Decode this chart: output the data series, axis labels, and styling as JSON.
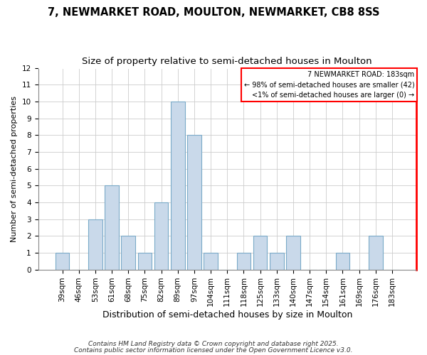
{
  "title": "7, NEWMARKET ROAD, MOULTON, NEWMARKET, CB8 8SS",
  "subtitle": "Size of property relative to semi-detached houses in Moulton",
  "xlabel": "Distribution of semi-detached houses by size in Moulton",
  "ylabel": "Number of semi-detached properties",
  "bar_labels": [
    "39sqm",
    "46sqm",
    "53sqm",
    "61sqm",
    "68sqm",
    "75sqm",
    "82sqm",
    "89sqm",
    "97sqm",
    "104sqm",
    "111sqm",
    "118sqm",
    "125sqm",
    "133sqm",
    "140sqm",
    "147sqm",
    "154sqm",
    "161sqm",
    "169sqm",
    "176sqm",
    "183sqm"
  ],
  "bar_values": [
    1,
    0,
    3,
    5,
    2,
    1,
    4,
    10,
    8,
    1,
    0,
    1,
    2,
    1,
    2,
    0,
    0,
    1,
    0,
    2,
    0
  ],
  "bar_color": "#c9d9ea",
  "bar_edgecolor": "#7aaac8",
  "ylim": [
    0,
    12
  ],
  "yticks": [
    0,
    1,
    2,
    3,
    4,
    5,
    6,
    7,
    8,
    9,
    10,
    11,
    12
  ],
  "legend_title": "7 NEWMARKET ROAD: 183sqm",
  "legend_line1": "← 98% of semi-detached houses are smaller (42)",
  "legend_line2": "<1% of semi-detached houses are larger (0) →",
  "footer1": "Contains HM Land Registry data © Crown copyright and database right 2025.",
  "footer2": "Contains public sector information licensed under the Open Government Licence v3.0.",
  "bg_color": "#ffffff",
  "grid_color": "#cccccc",
  "title_fontsize": 10.5,
  "subtitle_fontsize": 9.5,
  "xlabel_fontsize": 9,
  "ylabel_fontsize": 8,
  "tick_fontsize": 7.5,
  "legend_fontsize": 7,
  "footer_fontsize": 6.5
}
